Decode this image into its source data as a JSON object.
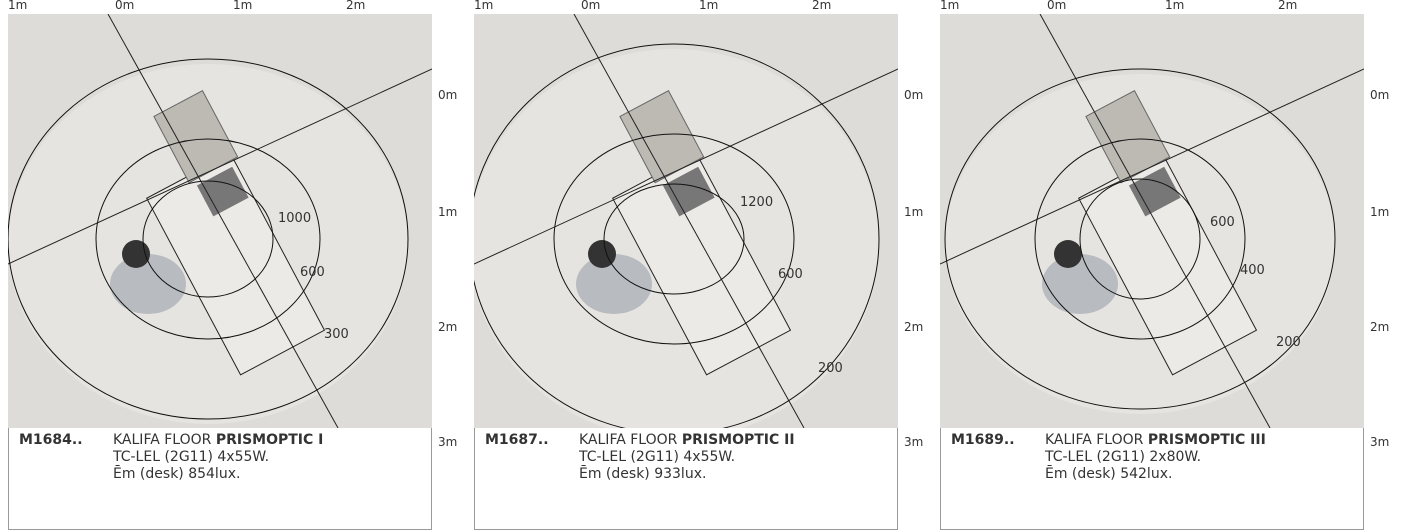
{
  "panels": [
    {
      "top_axis": [
        "1m",
        "0m",
        "1m",
        "2m"
      ],
      "right_axis": [
        "0m",
        "1m",
        "2m",
        "3m"
      ],
      "contours": [
        "1000",
        "600",
        "300"
      ],
      "model": "M1684..",
      "name": "KALIFA FLOOR",
      "variant": "PRISMOPTIC I",
      "spec": "TC-LEL (2G11) 4x55W.",
      "em": "Ēm (desk) 854lux."
    },
    {
      "top_axis": [
        "1m",
        "0m",
        "1m",
        "2m"
      ],
      "right_axis": [
        "0m",
        "1m",
        "2m",
        "3m"
      ],
      "contours": [
        "1200",
        "600",
        "200"
      ],
      "model": "M1687..",
      "name": "KALIFA FLOOR",
      "variant": "PRISMOPTIC II",
      "spec": "TC-LEL (2G11) 4x55W.",
      "em": "Ēm (desk) 933lux."
    },
    {
      "top_axis": [
        "1m",
        "0m",
        "1m",
        "2m"
      ],
      "right_axis": [
        "0m",
        "1m",
        "2m",
        "3m"
      ],
      "contours": [
        "600",
        "400",
        "200"
      ],
      "model": "M1689..",
      "name": "KALIFA FLOOR",
      "variant": "PRISMOPTIC III",
      "spec": "TC-LEL (2G11) 2x80W.",
      "em": "Ēm (desk) 542lux."
    }
  ]
}
